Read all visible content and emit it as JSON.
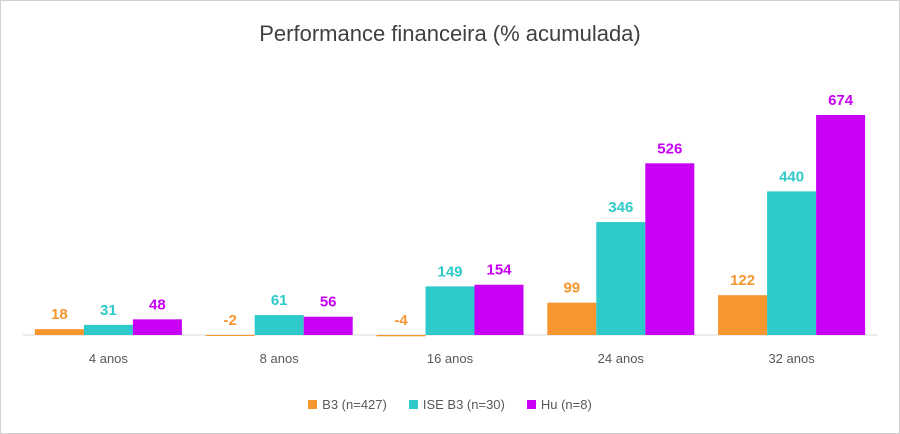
{
  "chart_data": {
    "type": "bar",
    "title": "Performance financeira (% acumulada)",
    "categories": [
      "4 anos",
      "8 anos",
      "16 anos",
      "24 anos",
      "32 anos"
    ],
    "series": [
      {
        "name": "B3 (n=427)",
        "values": [
          18,
          -2,
          -4,
          99,
          122
        ],
        "color": "#f7962f"
      },
      {
        "name": "ISE B3 (n=30)",
        "values": [
          31,
          61,
          149,
          346,
          440
        ],
        "color": "#2ec9c9"
      },
      {
        "name": "Hu (n=8)",
        "values": [
          48,
          56,
          154,
          526,
          674
        ],
        "color": "#c800f5"
      }
    ],
    "data_labels": true,
    "grid": false,
    "y_axis_visible": false,
    "legend_position": "bottom"
  }
}
